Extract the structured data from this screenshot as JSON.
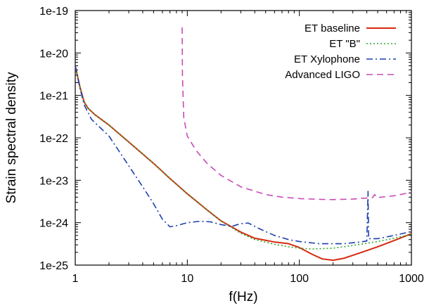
{
  "chart_data": {
    "type": "line",
    "title": "",
    "xlabel": "f(Hz)",
    "ylabel": "Strain spectral density",
    "xscale": "log",
    "yscale": "log",
    "xlim": [
      1,
      1000
    ],
    "ylim": [
      1e-25,
      1e-19
    ],
    "grid": false,
    "legend_position": "top-right",
    "x_ticks": [
      {
        "value": 1,
        "label": "1"
      },
      {
        "value": 10,
        "label": "10"
      },
      {
        "value": 100,
        "label": "100"
      },
      {
        "value": 1000,
        "label": "1000"
      }
    ],
    "y_ticks": [
      {
        "value": 1e-25,
        "label": "1e-25"
      },
      {
        "value": 1e-24,
        "label": "1e-24"
      },
      {
        "value": 1e-23,
        "label": "1e-23"
      },
      {
        "value": 1e-22,
        "label": "1e-22"
      },
      {
        "value": 1e-21,
        "label": "1e-21"
      },
      {
        "value": 1e-20,
        "label": "1e-20"
      },
      {
        "value": 1e-19,
        "label": "1e-19"
      }
    ],
    "series": [
      {
        "name": "ET baseline",
        "color": "#d62a0e",
        "dash": "solid",
        "points": [
          [
            1,
            5e-21
          ],
          [
            1.1,
            1.6e-21
          ],
          [
            1.2,
            7e-22
          ],
          [
            1.3,
            5e-22
          ],
          [
            1.5,
            3.5e-22
          ],
          [
            2,
            2e-22
          ],
          [
            3,
            8e-23
          ],
          [
            5,
            2.5e-23
          ],
          [
            7,
            1.1e-23
          ],
          [
            10,
            4.8e-24
          ],
          [
            15,
            2e-24
          ],
          [
            20,
            1.1e-24
          ],
          [
            30,
            6e-25
          ],
          [
            40,
            4.3e-25
          ],
          [
            60,
            3.5e-25
          ],
          [
            80,
            3.2e-25
          ],
          [
            100,
            2.6e-25
          ],
          [
            130,
            1.8e-25
          ],
          [
            160,
            1.4e-25
          ],
          [
            200,
            1.3e-25
          ],
          [
            250,
            1.45e-25
          ],
          [
            300,
            1.7e-25
          ],
          [
            400,
            2.2e-25
          ],
          [
            500,
            2.7e-25
          ],
          [
            700,
            3.8e-25
          ],
          [
            1000,
            5.5e-25
          ]
        ]
      },
      {
        "name": "ET \"B\"",
        "color": "#2fa92f",
        "dash": "dotted",
        "points": [
          [
            1,
            5e-21
          ],
          [
            1.1,
            1.6e-21
          ],
          [
            1.2,
            7e-22
          ],
          [
            1.3,
            5e-22
          ],
          [
            1.5,
            3.5e-22
          ],
          [
            2,
            2e-22
          ],
          [
            3,
            8e-23
          ],
          [
            5,
            2.5e-23
          ],
          [
            7,
            1.1e-23
          ],
          [
            10,
            4.8e-24
          ],
          [
            15,
            2e-24
          ],
          [
            20,
            1.1e-24
          ],
          [
            30,
            5.6e-25
          ],
          [
            40,
            4e-25
          ],
          [
            60,
            3.1e-25
          ],
          [
            80,
            2.7e-25
          ],
          [
            100,
            2.5e-25
          ],
          [
            130,
            2.4e-25
          ],
          [
            200,
            2.5e-25
          ],
          [
            300,
            2.9e-25
          ],
          [
            500,
            3.6e-25
          ],
          [
            700,
            4.3e-25
          ],
          [
            1000,
            5.3e-25
          ]
        ]
      },
      {
        "name": "ET Xylophone",
        "color": "#1d3fb0",
        "dash": "dashdot",
        "points": [
          [
            1,
            5e-21
          ],
          [
            1.1,
            1.5e-21
          ],
          [
            1.2,
            6e-22
          ],
          [
            1.4,
            2.7e-22
          ],
          [
            2,
            1.1e-22
          ],
          [
            3,
            2.2e-23
          ],
          [
            4,
            7e-24
          ],
          [
            5,
            2.8e-24
          ],
          [
            6,
            1.2e-24
          ],
          [
            7,
            8e-25
          ],
          [
            8,
            8.5e-25
          ],
          [
            10,
            1e-24
          ],
          [
            13,
            1.08e-24
          ],
          [
            16,
            1.05e-24
          ],
          [
            20,
            9e-25
          ],
          [
            25,
            8.2e-25
          ],
          [
            30,
            9.5e-25
          ],
          [
            35,
            9.8e-25
          ],
          [
            45,
            7e-25
          ],
          [
            60,
            5e-25
          ],
          [
            80,
            4e-25
          ],
          [
            100,
            3.6e-25
          ],
          [
            150,
            3.2e-25
          ],
          [
            250,
            3.2e-25
          ],
          [
            350,
            3.5e-25
          ],
          [
            400,
            3.7e-25
          ],
          [
            410,
            5.5e-24
          ],
          [
            415,
            4.2e-25
          ],
          [
            500,
            4.2e-25
          ],
          [
            700,
            5e-25
          ],
          [
            1000,
            6.2e-25
          ]
        ]
      },
      {
        "name": "Advanced LIGO",
        "color": "#c84bb5",
        "dash": "dashed",
        "points": [
          [
            9,
            4e-20
          ],
          [
            9.05,
            3e-21
          ],
          [
            9.3,
            3e-22
          ],
          [
            10,
            1.1e-22
          ],
          [
            12,
            5e-23
          ],
          [
            15,
            2.5e-23
          ],
          [
            20,
            1.3e-23
          ],
          [
            30,
            7e-24
          ],
          [
            50,
            4.6e-24
          ],
          [
            70,
            4e-24
          ],
          [
            100,
            3.7e-24
          ],
          [
            150,
            3.55e-24
          ],
          [
            200,
            3.5e-24
          ],
          [
            300,
            3.6e-24
          ],
          [
            450,
            3.9e-24
          ],
          [
            470,
            4.6e-24
          ],
          [
            490,
            3.9e-24
          ],
          [
            700,
            4.3e-24
          ],
          [
            1000,
            5.2e-24
          ]
        ]
      }
    ]
  }
}
